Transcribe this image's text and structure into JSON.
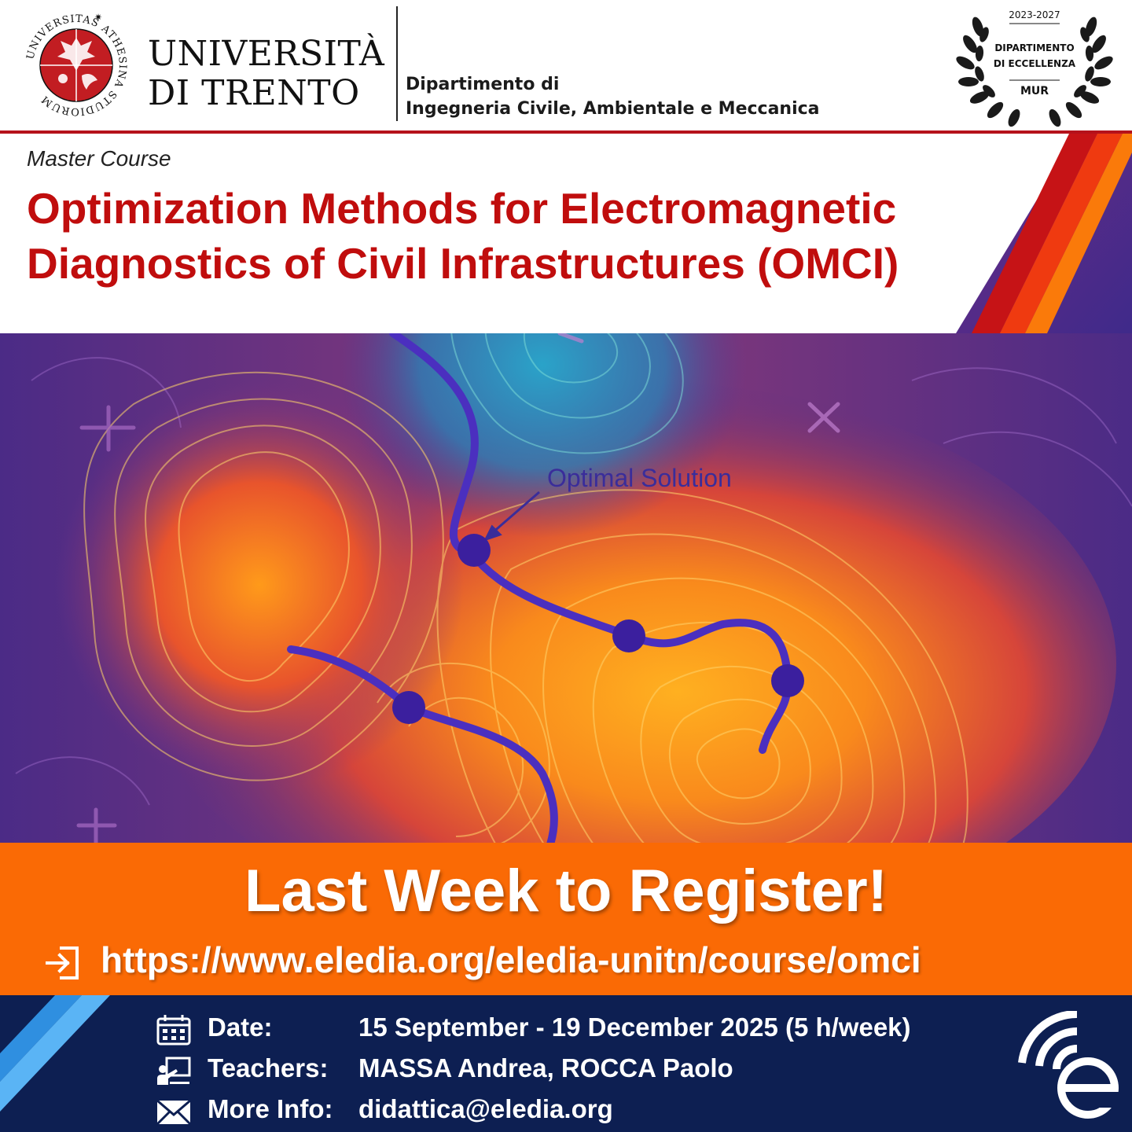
{
  "header": {
    "seal_text": "UNIVERSITAS ATHESINA STUDIORUM",
    "university_line1": "UNIVERSITÀ",
    "university_line2": "DI TRENTO",
    "department_line1": "Dipartimento di",
    "department_line2": "Ingegneria Civile, Ambientale e Meccanica",
    "excellence": {
      "years": "2023-2027",
      "line1": "DIPARTIMENTO",
      "line2": "DI ECCELLENZA",
      "ministry": "MUR"
    }
  },
  "course": {
    "kind": "Master Course",
    "title_line1": "Optimization Methods for Electromagnetic",
    "title_line2": "Diagnostics of Civil Infrastructures (OMCI)"
  },
  "illustration": {
    "annotation": "Optimal Solution",
    "icons": [
      "plus-icon",
      "cross-icon"
    ]
  },
  "banner": {
    "headline": "Last Week to Register!",
    "url": "https://www.eledia.org/eledia-unitn/course/omci",
    "icon": "login-icon"
  },
  "info": {
    "date_label": "Date:",
    "date_value": "15 September - 19 December 2025 (5 h/week)",
    "teachers_label": "Teachers:",
    "teachers_value": "MASSA Andrea, ROCCA Paolo",
    "contact_label": "More Info:",
    "contact_value": "didattica@eledia.org"
  },
  "colors": {
    "title_red": "#c00d0d",
    "banner_orange": "#fa6a05",
    "footer_navy": "#0d1f52",
    "path_purple": "#4b2fbf"
  }
}
